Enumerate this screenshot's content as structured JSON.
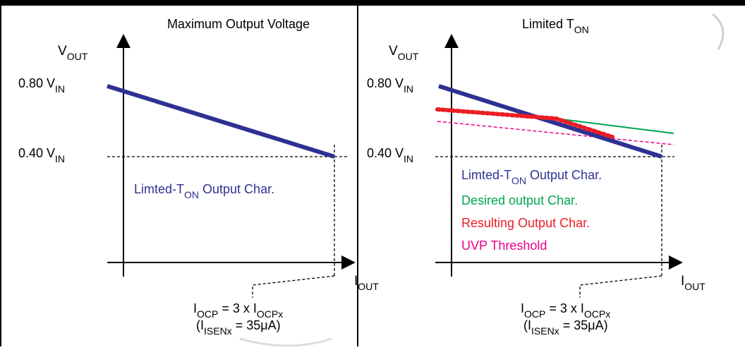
{
  "colors": {
    "limited_line": "#2e3192",
    "desired_line": "#00a651",
    "resulting_line": "#ed1c24",
    "uvp_line": "#ec008c",
    "frame": "#000000",
    "watermark": "#cfcfcf"
  },
  "left_panel": {
    "title": "Maximum Output Voltage",
    "y_axis": {
      "base": "V",
      "sub": "OUT"
    },
    "x_axis": {
      "base": "I",
      "sub": "OUT"
    },
    "tick_high": {
      "value": "0.80 V",
      "sub": "IN"
    },
    "tick_low": {
      "value": "0.40 V",
      "sub": "IN"
    },
    "curve_label": {
      "pre": "Limted-T",
      "sub": "ON",
      "post": " Output Char."
    },
    "ocp_line1": {
      "a": "I",
      "a_sub": "OCP",
      "mid": " = 3 x I",
      "b_sub": "OCPx"
    },
    "ocp_line2": {
      "open": "(I",
      "sub": "ISENx",
      "rest": " = 35μA)"
    }
  },
  "right_panel": {
    "title_pre": "Limited T",
    "title_sub": "ON",
    "y_axis": {
      "base": "V",
      "sub": "OUT"
    },
    "x_axis": {
      "base": "I",
      "sub": "OUT"
    },
    "tick_high": {
      "value": "0.80 V",
      "sub": "IN"
    },
    "tick_low": {
      "value": "0.40 V",
      "sub": "IN"
    },
    "legend": {
      "limited": {
        "pre": "Limted-T",
        "sub": "ON",
        "post": " Output Char."
      },
      "desired": "Desired output Char.",
      "resulting": "Resulting Output Char.",
      "uvp": "UVP Threshold"
    },
    "ocp_line1": {
      "a": "I",
      "a_sub": "OCP",
      "mid": " = 3 x I",
      "b_sub": "OCPx"
    },
    "ocp_line2": {
      "open": "(I",
      "sub": "ISENx",
      "rest": " = 35μA)"
    }
  }
}
